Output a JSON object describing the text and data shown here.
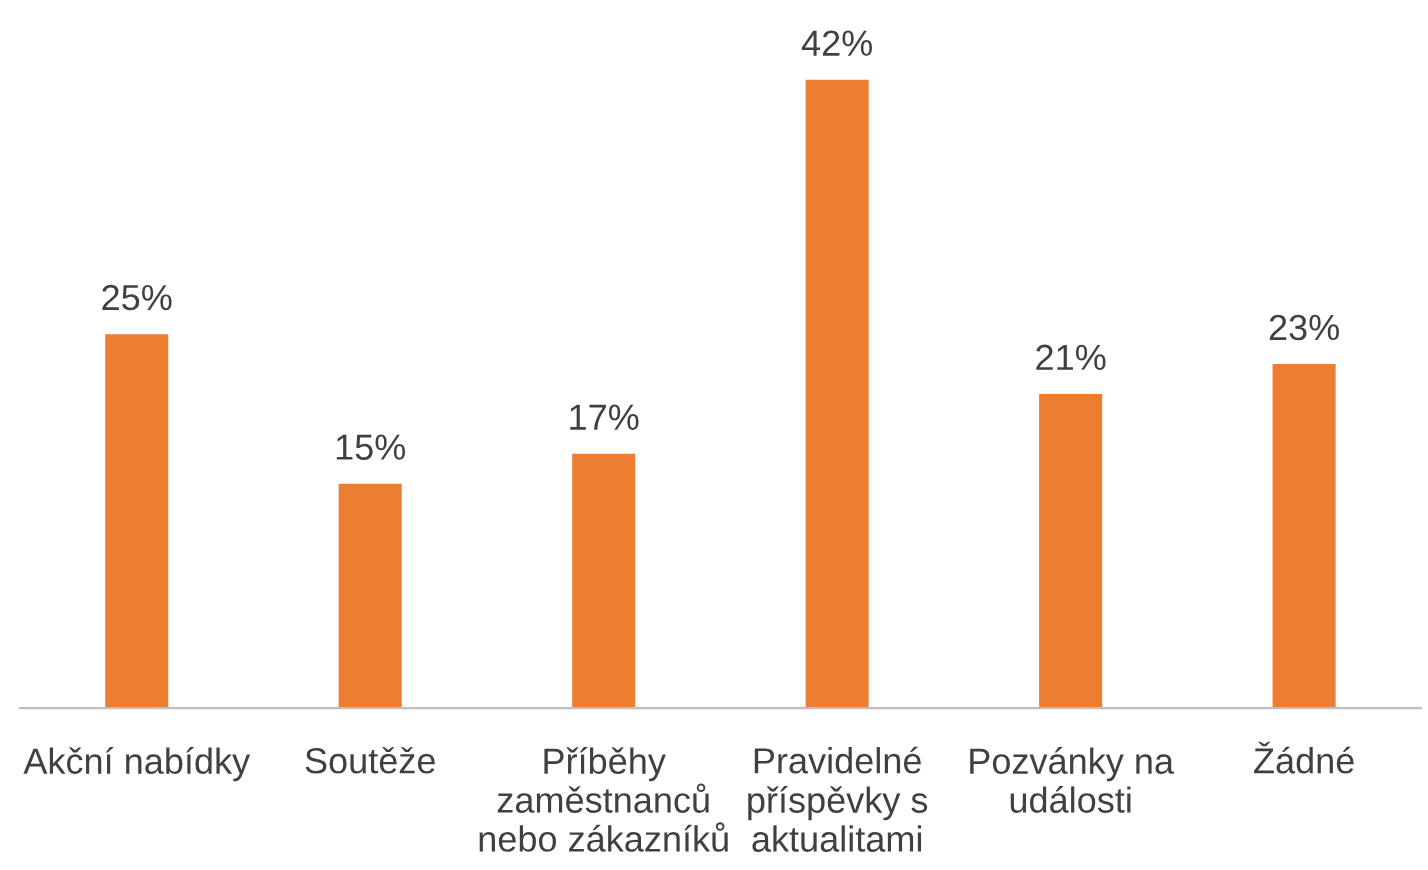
{
  "chart_data": {
    "type": "bar",
    "categories": [
      "Akční nabídky",
      "Soutěže",
      "Příběhy\nzaměstnanců\nnebo zákazníků",
      "Pravidelné\npříspěvky s\naktualitami",
      "Pozvánky na\nudálosti",
      "Žádné"
    ],
    "values": [
      25,
      15,
      17,
      42,
      21,
      23
    ],
    "color": "#ed7d31",
    "value_labels": [
      "25%",
      "15%",
      "17%",
      "42%",
      "21%",
      "23%"
    ],
    "grid": false,
    "legend": false
  }
}
